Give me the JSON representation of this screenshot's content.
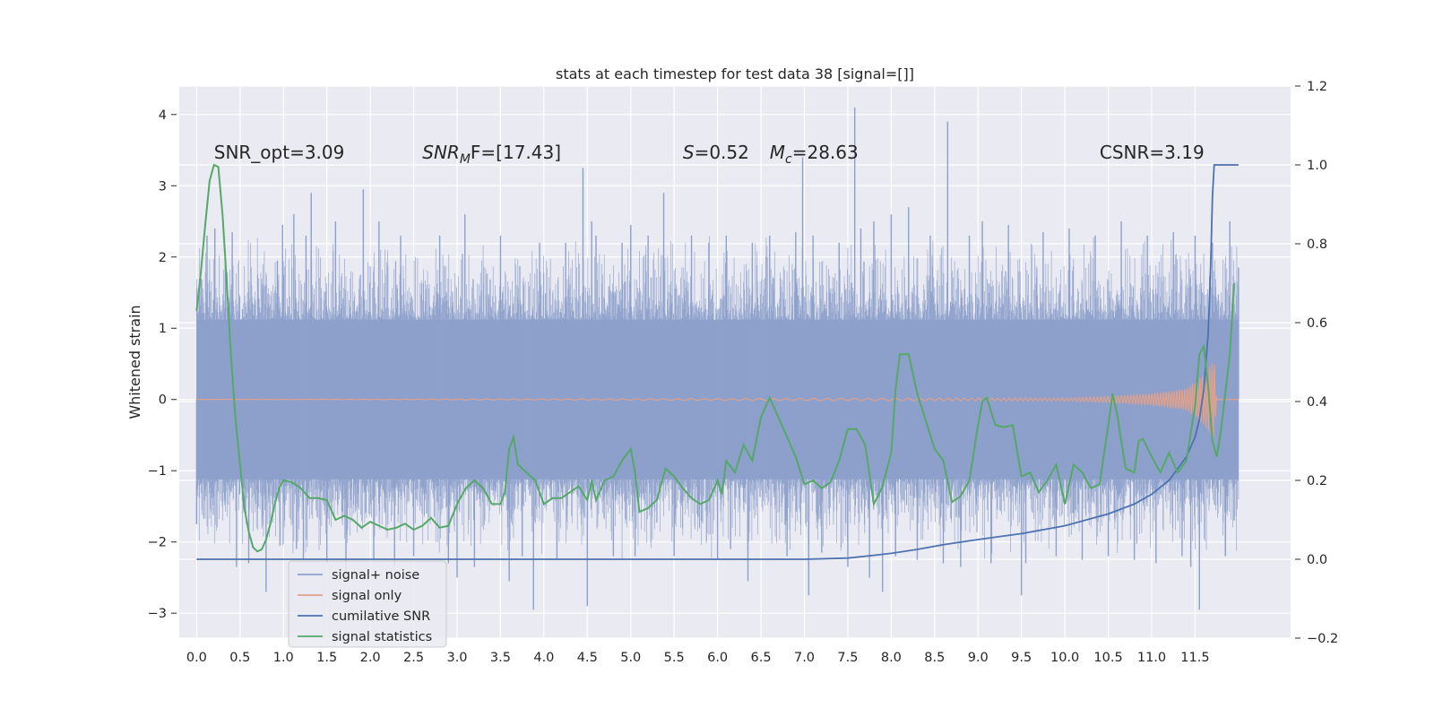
{
  "chart_data": {
    "type": "line",
    "title": "stats at each timestep for test data 38 [signal=[]]",
    "ylabel": "Whitened strain",
    "xlim": [
      -0.2,
      12.6
    ],
    "ylim": [
      -3.35,
      4.4
    ],
    "y2lim": [
      -0.2,
      1.2
    ],
    "grid": true,
    "x_ticks": [
      0.0,
      0.5,
      1.0,
      1.5,
      2.0,
      2.5,
      3.0,
      3.5,
      4.0,
      4.5,
      5.0,
      5.5,
      6.0,
      6.5,
      7.0,
      7.5,
      8.0,
      8.5,
      9.0,
      9.5,
      10.0,
      10.5,
      11.0,
      11.5
    ],
    "x_tick_labels": [
      "0.0",
      "0.5",
      "1.0",
      "1.5",
      "2.0",
      "2.5",
      "3.0",
      "3.5",
      "4.0",
      "4.5",
      "5.0",
      "5.5",
      "6.0",
      "6.5",
      "7.0",
      "7.5",
      "8.0",
      "8.5",
      "9.0",
      "9.5",
      "10.0",
      "10.5",
      "11.0",
      "11.5"
    ],
    "y_ticks": [
      -3,
      -2,
      -1,
      0,
      1,
      2,
      3,
      4
    ],
    "y_tick_labels": [
      "−3",
      "−2",
      "−1",
      "0",
      "1",
      "2",
      "3",
      "4"
    ],
    "y2_ticks": [
      -0.2,
      0.0,
      0.2,
      0.4,
      0.6,
      0.8,
      1.0,
      1.2
    ],
    "y2_tick_labels": [
      "−0.2",
      "0.0",
      "0.2",
      "0.4",
      "0.6",
      "0.8",
      "1.0",
      "1.2"
    ],
    "annotations": [
      {
        "text": "SNR_opt=3.09",
        "x": 0.2,
        "y": 3.38,
        "kind": "plain"
      },
      {
        "main": "SNR",
        "sub": "M",
        "rest": "F=[17.43]",
        "x": 2.6,
        "y": 3.38,
        "kind": "sub"
      },
      {
        "main": "S",
        "sub": "",
        "rest": "=0.52",
        "x": 5.6,
        "y": 3.38,
        "kind": "sub"
      },
      {
        "main": "M",
        "sub": "c",
        "rest": "=28.63",
        "x": 6.6,
        "y": 3.38,
        "kind": "sub"
      },
      {
        "text": "CSNR=3.19",
        "x": 10.4,
        "y": 3.38,
        "kind": "plain"
      }
    ],
    "legend": {
      "position": "lower-left",
      "entries": [
        {
          "label": "signal+ noise",
          "color": "#8da0cb"
        },
        {
          "label": "signal only",
          "color": "#e1a08a"
        },
        {
          "label": "cumilative SNR",
          "color": "#4c72b0"
        },
        {
          "label": "signal statistics",
          "color": "#55a868"
        }
      ]
    },
    "series": [
      {
        "name": "signal+ noise",
        "axis": "left",
        "color": "#8da0cb",
        "x_range": [
          0.0,
          12.0
        ],
        "band": [
          -1.12,
          1.12
        ],
        "points": [
          [
            0.0,
            -1.75
          ],
          [
            0.05,
            1.7
          ],
          [
            0.12,
            2.3
          ],
          [
            0.21,
            2.4
          ],
          [
            0.33,
            2.0
          ],
          [
            0.41,
            2.35
          ],
          [
            0.46,
            -2.35
          ],
          [
            0.6,
            -2.3
          ],
          [
            0.8,
            -2.7
          ],
          [
            0.93,
            1.95
          ],
          [
            0.96,
            -2.05
          ],
          [
            0.99,
            2.45
          ],
          [
            1.12,
            2.6
          ],
          [
            1.15,
            -2.1
          ],
          [
            1.23,
            -2.25
          ],
          [
            1.26,
            2.3
          ],
          [
            1.32,
            2.9
          ],
          [
            1.5,
            -2.3
          ],
          [
            1.6,
            2.5
          ],
          [
            1.72,
            -2.5
          ],
          [
            1.92,
            2.95
          ],
          [
            2.04,
            -2.25
          ],
          [
            2.1,
            2.5
          ],
          [
            2.28,
            -2.35
          ],
          [
            2.35,
            2.3
          ],
          [
            2.5,
            -2.2
          ],
          [
            2.8,
            2.3
          ],
          [
            2.9,
            -2.3
          ],
          [
            3.0,
            -2.5
          ],
          [
            3.09,
            2.6
          ],
          [
            3.2,
            -2.35
          ],
          [
            3.5,
            2.3
          ],
          [
            3.6,
            -2.55
          ],
          [
            3.75,
            -2.2
          ],
          [
            3.88,
            -2.95
          ],
          [
            3.95,
            2.2
          ],
          [
            4.15,
            -2.25
          ],
          [
            4.25,
            2.2
          ],
          [
            4.45,
            3.25
          ],
          [
            4.5,
            -2.9
          ],
          [
            4.55,
            2.5
          ],
          [
            4.6,
            2.3
          ],
          [
            4.8,
            -2.2
          ],
          [
            4.9,
            2.2
          ],
          [
            5.0,
            2.45
          ],
          [
            5.05,
            -2.2
          ],
          [
            5.2,
            2.3
          ],
          [
            5.38,
            2.9
          ],
          [
            5.5,
            -2.2
          ],
          [
            5.7,
            2.3
          ],
          [
            5.9,
            2.2
          ],
          [
            6.0,
            -2.25
          ],
          [
            6.1,
            2.3
          ],
          [
            6.15,
            -2.1
          ],
          [
            6.35,
            -2.55
          ],
          [
            6.4,
            2.2
          ],
          [
            6.6,
            2.3
          ],
          [
            6.8,
            -2.2
          ],
          [
            6.9,
            2.35
          ],
          [
            6.98,
            3.4
          ],
          [
            7.05,
            -2.75
          ],
          [
            7.1,
            2.3
          ],
          [
            7.2,
            -2.15
          ],
          [
            7.4,
            2.2
          ],
          [
            7.5,
            -2.35
          ],
          [
            7.58,
            4.1
          ],
          [
            7.65,
            2.4
          ],
          [
            7.75,
            -2.5
          ],
          [
            7.8,
            2.5
          ],
          [
            7.9,
            -2.7
          ],
          [
            8.0,
            2.6
          ],
          [
            8.05,
            -2.2
          ],
          [
            8.2,
            2.7
          ],
          [
            8.3,
            -2.25
          ],
          [
            8.45,
            2.3
          ],
          [
            8.6,
            -2.3
          ],
          [
            8.65,
            3.9
          ],
          [
            8.8,
            -2.35
          ],
          [
            8.9,
            2.3
          ],
          [
            9.05,
            2.5
          ],
          [
            9.15,
            -2.3
          ],
          [
            9.35,
            2.45
          ],
          [
            9.5,
            -2.75
          ],
          [
            9.55,
            -2.3
          ],
          [
            9.75,
            2.35
          ],
          [
            9.9,
            -2.2
          ],
          [
            10.05,
            2.4
          ],
          [
            10.2,
            -2.25
          ],
          [
            10.35,
            2.3
          ],
          [
            10.5,
            -2.2
          ],
          [
            10.65,
            2.5
          ],
          [
            10.8,
            -2.25
          ],
          [
            10.95,
            2.3
          ],
          [
            11.05,
            -2.3
          ],
          [
            11.25,
            2.35
          ],
          [
            11.35,
            -2.2
          ],
          [
            11.45,
            -2.35
          ],
          [
            11.5,
            2.3
          ],
          [
            11.55,
            -2.95
          ],
          [
            11.7,
            2.2
          ],
          [
            11.85,
            -2.2
          ],
          [
            11.9,
            2.5
          ],
          [
            11.95,
            -1.7
          ],
          [
            12.0,
            1.85
          ]
        ]
      },
      {
        "name": "signal only",
        "axis": "left",
        "color": "#e1a08a",
        "x_range": [
          0.0,
          12.0
        ],
        "envelope": [
          [
            0.0,
            0.0
          ],
          [
            10.0,
            0.02
          ],
          [
            10.5,
            0.04
          ],
          [
            11.0,
            0.08
          ],
          [
            11.4,
            0.15
          ],
          [
            11.6,
            0.35
          ],
          [
            11.72,
            0.55
          ],
          [
            11.75,
            0.0
          ],
          [
            12.0,
            0.0
          ]
        ]
      },
      {
        "name": "cumilative SNR",
        "axis": "right",
        "color": "#4c72b0",
        "points": [
          [
            0.0,
            0.0
          ],
          [
            6.5,
            0.0
          ],
          [
            7.0,
            0.0
          ],
          [
            7.5,
            0.003
          ],
          [
            7.8,
            0.01
          ],
          [
            8.0,
            0.015
          ],
          [
            8.3,
            0.025
          ],
          [
            8.6,
            0.037
          ],
          [
            9.0,
            0.05
          ],
          [
            9.5,
            0.065
          ],
          [
            10.0,
            0.085
          ],
          [
            10.5,
            0.115
          ],
          [
            10.8,
            0.14
          ],
          [
            11.0,
            0.165
          ],
          [
            11.2,
            0.2
          ],
          [
            11.4,
            0.26
          ],
          [
            11.5,
            0.31
          ],
          [
            11.55,
            0.355
          ],
          [
            11.6,
            0.43
          ],
          [
            11.65,
            0.57
          ],
          [
            11.68,
            0.75
          ],
          [
            11.7,
            0.92
          ],
          [
            11.72,
            1.0
          ],
          [
            12.0,
            1.0
          ]
        ]
      },
      {
        "name": "signal statistics",
        "axis": "right",
        "color": "#55a868",
        "points": [
          [
            0.0,
            0.63
          ],
          [
            0.05,
            0.73
          ],
          [
            0.1,
            0.85
          ],
          [
            0.15,
            0.96
          ],
          [
            0.2,
            1.0
          ],
          [
            0.25,
            0.995
          ],
          [
            0.3,
            0.87
          ],
          [
            0.35,
            0.69
          ],
          [
            0.4,
            0.5
          ],
          [
            0.45,
            0.35
          ],
          [
            0.5,
            0.24
          ],
          [
            0.55,
            0.13
          ],
          [
            0.6,
            0.07
          ],
          [
            0.65,
            0.03
          ],
          [
            0.7,
            0.02
          ],
          [
            0.75,
            0.025
          ],
          [
            0.8,
            0.05
          ],
          [
            0.85,
            0.09
          ],
          [
            0.9,
            0.14
          ],
          [
            0.95,
            0.18
          ],
          [
            1.0,
            0.2
          ],
          [
            1.1,
            0.195
          ],
          [
            1.2,
            0.18
          ],
          [
            1.3,
            0.155
          ],
          [
            1.4,
            0.155
          ],
          [
            1.5,
            0.15
          ],
          [
            1.6,
            0.1
          ],
          [
            1.7,
            0.11
          ],
          [
            1.8,
            0.1
          ],
          [
            1.9,
            0.08
          ],
          [
            2.0,
            0.095
          ],
          [
            2.1,
            0.085
          ],
          [
            2.2,
            0.075
          ],
          [
            2.3,
            0.08
          ],
          [
            2.4,
            0.09
          ],
          [
            2.5,
            0.075
          ],
          [
            2.6,
            0.085
          ],
          [
            2.7,
            0.105
          ],
          [
            2.8,
            0.08
          ],
          [
            2.9,
            0.085
          ],
          [
            3.0,
            0.14
          ],
          [
            3.1,
            0.18
          ],
          [
            3.2,
            0.2
          ],
          [
            3.3,
            0.18
          ],
          [
            3.4,
            0.14
          ],
          [
            3.5,
            0.14
          ],
          [
            3.55,
            0.17
          ],
          [
            3.6,
            0.28
          ],
          [
            3.65,
            0.31
          ],
          [
            3.7,
            0.24
          ],
          [
            3.8,
            0.22
          ],
          [
            3.9,
            0.2
          ],
          [
            4.0,
            0.14
          ],
          [
            4.1,
            0.155
          ],
          [
            4.2,
            0.155
          ],
          [
            4.3,
            0.17
          ],
          [
            4.4,
            0.185
          ],
          [
            4.5,
            0.15
          ],
          [
            4.55,
            0.2
          ],
          [
            4.6,
            0.15
          ],
          [
            4.7,
            0.2
          ],
          [
            4.8,
            0.21
          ],
          [
            4.9,
            0.25
          ],
          [
            5.0,
            0.28
          ],
          [
            5.05,
            0.22
          ],
          [
            5.1,
            0.12
          ],
          [
            5.2,
            0.13
          ],
          [
            5.3,
            0.15
          ],
          [
            5.4,
            0.23
          ],
          [
            5.5,
            0.21
          ],
          [
            5.6,
            0.18
          ],
          [
            5.7,
            0.155
          ],
          [
            5.8,
            0.14
          ],
          [
            5.9,
            0.15
          ],
          [
            6.0,
            0.2
          ],
          [
            6.05,
            0.165
          ],
          [
            6.1,
            0.25
          ],
          [
            6.2,
            0.22
          ],
          [
            6.3,
            0.29
          ],
          [
            6.4,
            0.25
          ],
          [
            6.5,
            0.36
          ],
          [
            6.6,
            0.41
          ],
          [
            6.7,
            0.36
          ],
          [
            6.8,
            0.31
          ],
          [
            6.9,
            0.26
          ],
          [
            7.0,
            0.19
          ],
          [
            7.1,
            0.2
          ],
          [
            7.2,
            0.18
          ],
          [
            7.3,
            0.195
          ],
          [
            7.4,
            0.25
          ],
          [
            7.5,
            0.33
          ],
          [
            7.6,
            0.33
          ],
          [
            7.7,
            0.29
          ],
          [
            7.8,
            0.14
          ],
          [
            7.9,
            0.185
          ],
          [
            8.0,
            0.27
          ],
          [
            8.05,
            0.43
          ],
          [
            8.1,
            0.52
          ],
          [
            8.2,
            0.52
          ],
          [
            8.3,
            0.42
          ],
          [
            8.4,
            0.35
          ],
          [
            8.5,
            0.28
          ],
          [
            8.6,
            0.25
          ],
          [
            8.7,
            0.145
          ],
          [
            8.8,
            0.16
          ],
          [
            8.9,
            0.2
          ],
          [
            9.0,
            0.34
          ],
          [
            9.05,
            0.4
          ],
          [
            9.1,
            0.41
          ],
          [
            9.2,
            0.34
          ],
          [
            9.3,
            0.335
          ],
          [
            9.4,
            0.34
          ],
          [
            9.5,
            0.21
          ],
          [
            9.6,
            0.22
          ],
          [
            9.7,
            0.17
          ],
          [
            9.8,
            0.2
          ],
          [
            9.9,
            0.24
          ],
          [
            10.0,
            0.14
          ],
          [
            10.1,
            0.24
          ],
          [
            10.2,
            0.22
          ],
          [
            10.3,
            0.18
          ],
          [
            10.4,
            0.19
          ],
          [
            10.5,
            0.34
          ],
          [
            10.55,
            0.42
          ],
          [
            10.6,
            0.37
          ],
          [
            10.7,
            0.23
          ],
          [
            10.8,
            0.22
          ],
          [
            10.85,
            0.3
          ],
          [
            10.9,
            0.305
          ],
          [
            11.0,
            0.26
          ],
          [
            11.1,
            0.22
          ],
          [
            11.2,
            0.27
          ],
          [
            11.3,
            0.22
          ],
          [
            11.4,
            0.25
          ],
          [
            11.5,
            0.39
          ],
          [
            11.55,
            0.52
          ],
          [
            11.6,
            0.54
          ],
          [
            11.65,
            0.44
          ],
          [
            11.7,
            0.3
          ],
          [
            11.75,
            0.26
          ],
          [
            11.8,
            0.33
          ],
          [
            11.9,
            0.52
          ],
          [
            11.95,
            0.7
          ]
        ]
      }
    ]
  }
}
